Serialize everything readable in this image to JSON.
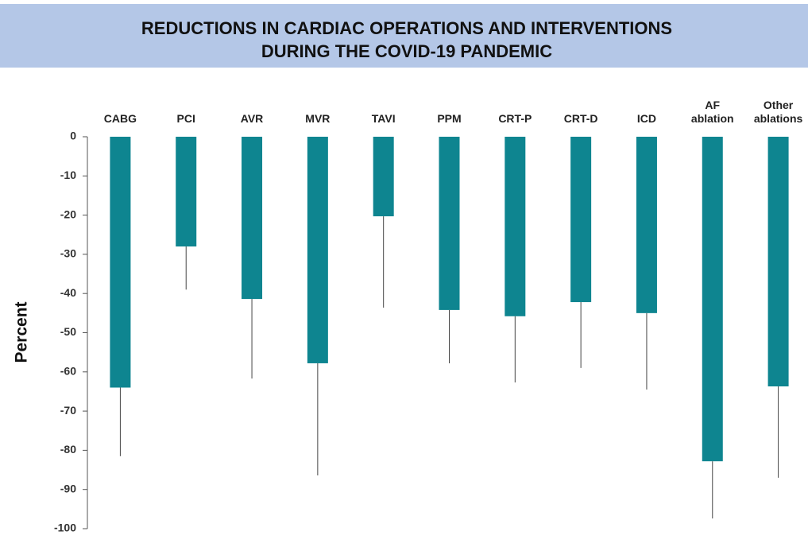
{
  "chart_data": {
    "type": "bar",
    "title": [
      "REDUCTIONS IN CARDIAC OPERATIONS AND INTERVENTIONS",
      "DURING THE COVID-19 PANDEMIC"
    ],
    "y_label": "Percent",
    "categories": [
      "CABG",
      "PCI",
      "AVR",
      "MVR",
      "TAVI",
      "PPM",
      "CRT-P",
      "CRT-D",
      "ICD",
      "AF ablation",
      "Other ablations"
    ],
    "values": [
      -64,
      -28,
      -41.4,
      -57.8,
      -20.3,
      -44.2,
      -45.8,
      -42.2,
      -45,
      -82.8,
      -63.7
    ],
    "errors": [
      17.5,
      11,
      20.3,
      28.6,
      23.3,
      13.6,
      16.9,
      16.8,
      19.5,
      14.6,
      23.3
    ],
    "color": "#0e8590",
    "ylim": [
      -100,
      0
    ],
    "yticks": [
      0,
      -10,
      -20,
      -30,
      -40,
      -50,
      -60,
      -70,
      -80,
      -90,
      -100
    ]
  }
}
